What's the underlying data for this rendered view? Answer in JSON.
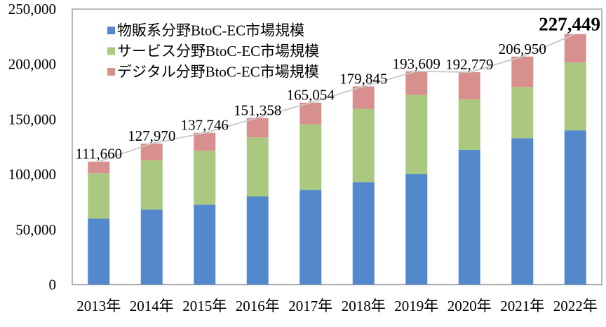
{
  "figure": {
    "background": "#FFFFFF",
    "plot_border_color": "#A0A0A0",
    "total_line_color": "#C9C9C9",
    "text_color": "#000000"
  },
  "chart_data": {
    "type": "bar",
    "subtype": "stacked-column-with-total-line",
    "title": "",
    "xlabel": "",
    "ylabel": "",
    "categories": [
      "2013年",
      "2014年",
      "2015年",
      "2016年",
      "2017年",
      "2018年",
      "2019年",
      "2020年",
      "2021年",
      "2022年"
    ],
    "series": [
      {
        "name": "物販系分野BtoC-EC市場規模",
        "color": "#5388CD",
        "values": [
          59931,
          68043,
          72398,
          80043,
          86008,
          92992,
          100515,
          122333,
          132865,
          139997
        ]
      },
      {
        "name": "サービス分野BtoC-EC市場規模",
        "color": "#AAC87F",
        "values": [
          41210,
          44816,
          49014,
          53532,
          59568,
          66471,
          71672,
          45832,
          46424,
          61477
        ]
      },
      {
        "name": "デジタル分野BtoC-EC市場規模",
        "color": "#D8908E",
        "values": [
          10519,
          15111,
          16334,
          17782,
          19478,
          20382,
          21422,
          24614,
          27661,
          25974
        ]
      }
    ],
    "totals": [
      111660,
      127970,
      137746,
      151358,
      165054,
      179845,
      193609,
      192779,
      206950,
      227449
    ],
    "total_labels": [
      "111,660",
      "127,970",
      "137,746",
      "151,358",
      "165,054",
      "179,845",
      "193,609",
      "192,779",
      "206,950",
      "227,449"
    ],
    "emphasized_total_index": 9,
    "emphasized_total_label": "227,449",
    "y_axis": {
      "min": 0,
      "max": 250000,
      "ticks": [
        {
          "value": 250000,
          "label": "250,000"
        },
        {
          "value": 200000,
          "label": "200,000"
        },
        {
          "value": 150000,
          "label": "150,000"
        },
        {
          "value": 100000,
          "label": "100,000"
        },
        {
          "value": 50000,
          "label": "50,000"
        },
        {
          "value": 0,
          "label": "0"
        }
      ]
    },
    "legend_position": "top-left-inside",
    "grid": false
  }
}
